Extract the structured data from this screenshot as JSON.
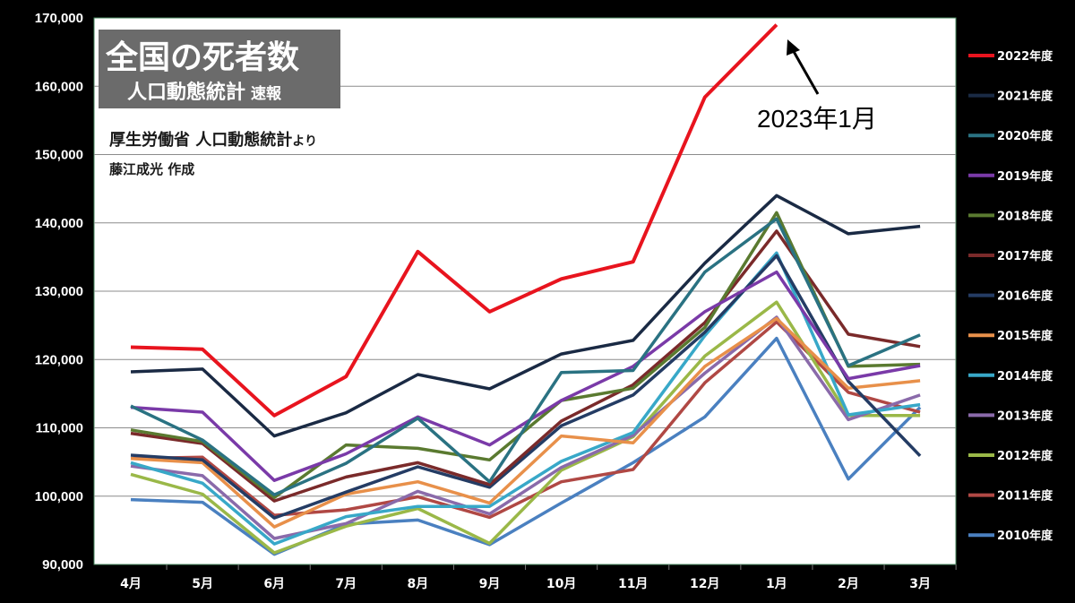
{
  "title": {
    "main": "全国の死者数",
    "sub": "人口動態統計",
    "sub_small": "速報"
  },
  "source": {
    "main": "厚生労働省 人口動態統計",
    "suffix": "より"
  },
  "author": "藤江成光 作成",
  "annotation": "2023年1月",
  "colors": {
    "background": "#000000",
    "plot_background": "#ffffff",
    "grid": "#8c8c8c",
    "plot_border": "#4a8a60"
  },
  "chart_data": {
    "type": "line",
    "categories": [
      "4月",
      "5月",
      "6月",
      "7月",
      "8月",
      "9月",
      "10月",
      "11月",
      "12月",
      "1月",
      "2月",
      "3月"
    ],
    "ylim": [
      90000,
      170000
    ],
    "yticks": [
      "90,000",
      "100,000",
      "110,000",
      "120,000",
      "130,000",
      "140,000",
      "150,000",
      "160,000",
      "170,000"
    ],
    "legend_position": "right",
    "grid": true,
    "series": [
      {
        "name": "2022年度",
        "color": "#e8141e",
        "values": [
          121800,
          121500,
          111800,
          117500,
          135800,
          127000,
          131800,
          134300,
          158400,
          169000,
          null,
          null
        ]
      },
      {
        "name": "2021年度",
        "color": "#1a2a44",
        "values": [
          118200,
          118600,
          108800,
          112200,
          117800,
          115700,
          120800,
          122800,
          134100,
          144000,
          138400,
          139500
        ]
      },
      {
        "name": "2020年度",
        "color": "#2a7282",
        "values": [
          113200,
          108200,
          100200,
          104800,
          111400,
          102100,
          118100,
          118400,
          132800,
          140600,
          119100,
          123600
        ]
      },
      {
        "name": "2019年度",
        "color": "#7a3aa8",
        "values": [
          113000,
          112300,
          102300,
          106200,
          111600,
          107500,
          114000,
          119000,
          127000,
          132800,
          117200,
          119100
        ]
      },
      {
        "name": "2018年度",
        "color": "#5a7a30",
        "values": [
          109700,
          108000,
          99800,
          107500,
          107000,
          105300,
          114000,
          115800,
          124700,
          141500,
          119000,
          119300
        ]
      },
      {
        "name": "2017年度",
        "color": "#7a2a2a",
        "values": [
          109200,
          107700,
          99300,
          102800,
          104900,
          101700,
          111000,
          116300,
          125400,
          138800,
          123700,
          121900
        ]
      },
      {
        "name": "2016年度",
        "color": "#243c64",
        "values": [
          106000,
          105300,
          96800,
          100600,
          104300,
          101300,
          110300,
          114800,
          124000,
          135200,
          116800,
          105900
        ]
      },
      {
        "name": "2015年度",
        "color": "#e8904a",
        "values": [
          105500,
          104900,
          95500,
          100300,
          102100,
          99000,
          108800,
          107800,
          119000,
          126000,
          115800,
          116900
        ]
      },
      {
        "name": "2014年度",
        "color": "#38a8c8",
        "values": [
          104900,
          101900,
          93000,
          97000,
          98500,
          98500,
          105100,
          109300,
          123500,
          135600,
          111900,
          113400
        ]
      },
      {
        "name": "2013年度",
        "color": "#8a6aaa",
        "values": [
          104400,
          103000,
          93800,
          96000,
          100700,
          97400,
          104200,
          108900,
          118000,
          126200,
          111200,
          114800
        ]
      },
      {
        "name": "2012年度",
        "color": "#9ab848",
        "values": [
          103200,
          100300,
          91700,
          95600,
          98200,
          93100,
          103800,
          108700,
          120500,
          128400,
          111800,
          111800
        ]
      },
      {
        "name": "2011年度",
        "color": "#b04844",
        "values": [
          105500,
          105700,
          97200,
          98000,
          99900,
          96900,
          102100,
          103900,
          116600,
          125500,
          115200,
          112300
        ]
      },
      {
        "name": "2010年度",
        "color": "#4a80c0",
        "values": [
          99500,
          99100,
          91500,
          95900,
          96500,
          92900,
          99000,
          104900,
          111600,
          123100,
          102500,
          113000
        ]
      }
    ]
  }
}
